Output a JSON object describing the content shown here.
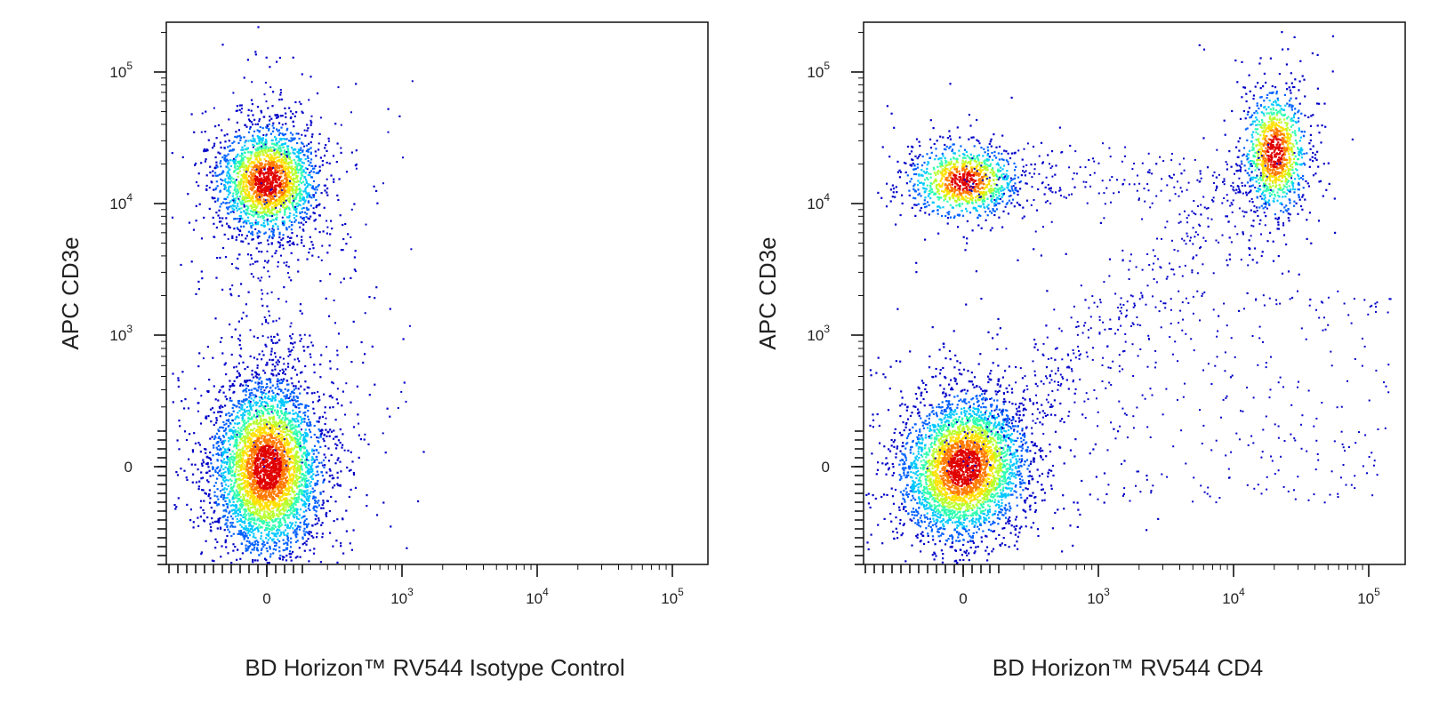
{
  "figure": {
    "background": "#ffffff",
    "density_colormap": [
      "#0000c8",
      "#0060ff",
      "#00c8ff",
      "#30ffb0",
      "#b8ff30",
      "#ffe000",
      "#ff7a00",
      "#e00000"
    ]
  },
  "chart_data": [
    {
      "type": "scatter",
      "style": "flow-cytometry density dot plot",
      "title": "",
      "xlabel": "BD Horizon™ RV544 Isotype Control",
      "ylabel": "APC  CD3e",
      "x_scale": "biexponential",
      "y_scale": "biexponential",
      "x_ticks": [
        {
          "value": 0,
          "label": "0",
          "exp": ""
        },
        {
          "value": 1000,
          "label": "10",
          "exp": "3"
        },
        {
          "value": 10000,
          "label": "10",
          "exp": "4"
        },
        {
          "value": 100000,
          "label": "10",
          "exp": "5"
        }
      ],
      "y_ticks": [
        {
          "value": 0,
          "label": "0",
          "exp": ""
        },
        {
          "value": 1000,
          "label": "10",
          "exp": "3"
        },
        {
          "value": 10000,
          "label": "10",
          "exp": "4"
        },
        {
          "value": 100000,
          "label": "10",
          "exp": "5"
        }
      ],
      "populations": [
        {
          "name": "",
          "x_center": 0,
          "y_center": 15000,
          "events": 2200
        },
        {
          "name": "",
          "x_center": 0,
          "y_center": 0,
          "events": 4200
        }
      ],
      "grid": false,
      "legend": "none"
    },
    {
      "type": "scatter",
      "style": "flow-cytometry density dot plot",
      "title": "",
      "xlabel": "BD Horizon™ RV544 CD4",
      "ylabel": "APC  CD3e",
      "x_scale": "biexponential",
      "y_scale": "biexponential",
      "x_ticks": [
        {
          "value": 0,
          "label": "0",
          "exp": ""
        },
        {
          "value": 1000,
          "label": "10",
          "exp": "3"
        },
        {
          "value": 10000,
          "label": "10",
          "exp": "4"
        },
        {
          "value": 100000,
          "label": "10",
          "exp": "5"
        }
      ],
      "y_ticks": [
        {
          "value": 0,
          "label": "0",
          "exp": ""
        },
        {
          "value": 1000,
          "label": "10",
          "exp": "3"
        },
        {
          "value": 10000,
          "label": "10",
          "exp": "4"
        },
        {
          "value": 100000,
          "label": "10",
          "exp": "5"
        }
      ],
      "populations": [
        {
          "name": "",
          "x_center": 0,
          "y_center": 15000,
          "events": 1100
        },
        {
          "name": "",
          "x_center": 20000,
          "y_center": 25000,
          "events": 1100
        },
        {
          "name": "",
          "x_center": 0,
          "y_center": 0,
          "events": 3800
        }
      ],
      "grid": false,
      "legend": "none"
    }
  ]
}
